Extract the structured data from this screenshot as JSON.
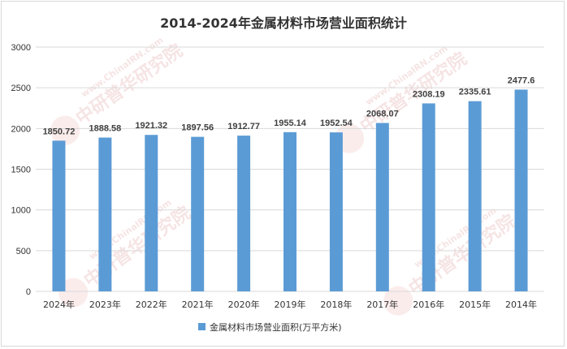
{
  "chart_data": {
    "type": "bar",
    "title": "2014-2024年金属材料市场营业面积统计",
    "categories": [
      "2024年",
      "2023年",
      "2022年",
      "2021年",
      "2020年",
      "2019年",
      "2018年",
      "2017年",
      "2016年",
      "2015年",
      "2014年"
    ],
    "series": [
      {
        "name": "金属材料市场营业面积(万平方米)",
        "values": [
          1850.72,
          1888.58,
          1921.32,
          1897.56,
          1912.77,
          1955.14,
          1952.54,
          2068.07,
          2308.19,
          2335.61,
          2477.6
        ],
        "labels": [
          "1850.72",
          "1888.58",
          "1921.32",
          "1897.56",
          "1912.77",
          "1955.14",
          "1952.54",
          "2068.07",
          "2308.19",
          "2335.61",
          "2477.6"
        ]
      }
    ],
    "ylim": [
      0,
      3000
    ],
    "yticks": [
      "0",
      "500",
      "1000",
      "1500",
      "2000",
      "2500",
      "3000"
    ],
    "grid": true,
    "legend_position": "bottom",
    "bar_color": "#5b9bd5",
    "grid_color": "#d9d9d9"
  },
  "watermark": {
    "brand_cn": "中研普华研究院",
    "brand_en": "www.ChinaIRN.com",
    "logo_text": "CIRN"
  }
}
